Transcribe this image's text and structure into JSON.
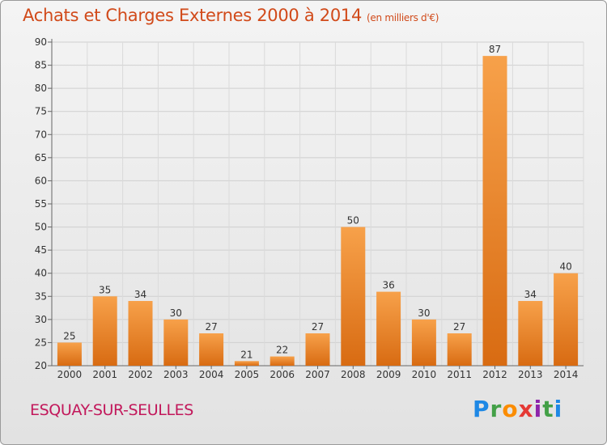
{
  "title": "Achats et Charges Externes 2000 à 2014",
  "subtitle": "(en milliers d'€)",
  "commune": "ESQUAY-SUR-SEULLES",
  "logo": {
    "letters": [
      "P",
      "r",
      "o",
      "x",
      "i",
      "t",
      "i"
    ],
    "colors": [
      "#1e88e5",
      "#43a047",
      "#fb8c00",
      "#e53935",
      "#8e24aa",
      "#43a047",
      "#1e88e5"
    ]
  },
  "colors": {
    "accent": "#d14a1a",
    "bar_light": "#f7a14a",
    "bar_dark": "#d86b12",
    "commune": "#c2185b"
  },
  "chart_data": {
    "type": "bar",
    "categories": [
      "2000",
      "2001",
      "2002",
      "2003",
      "2004",
      "2005",
      "2006",
      "2007",
      "2008",
      "2009",
      "2010",
      "2011",
      "2012",
      "2013",
      "2014"
    ],
    "values": [
      25,
      35,
      34,
      30,
      27,
      21,
      22,
      27,
      50,
      36,
      30,
      27,
      87,
      34,
      40
    ],
    "ylim": [
      20,
      90
    ],
    "yticks": [
      20,
      25,
      30,
      35,
      40,
      45,
      50,
      55,
      60,
      65,
      70,
      75,
      80,
      85,
      90
    ],
    "grid": true
  }
}
